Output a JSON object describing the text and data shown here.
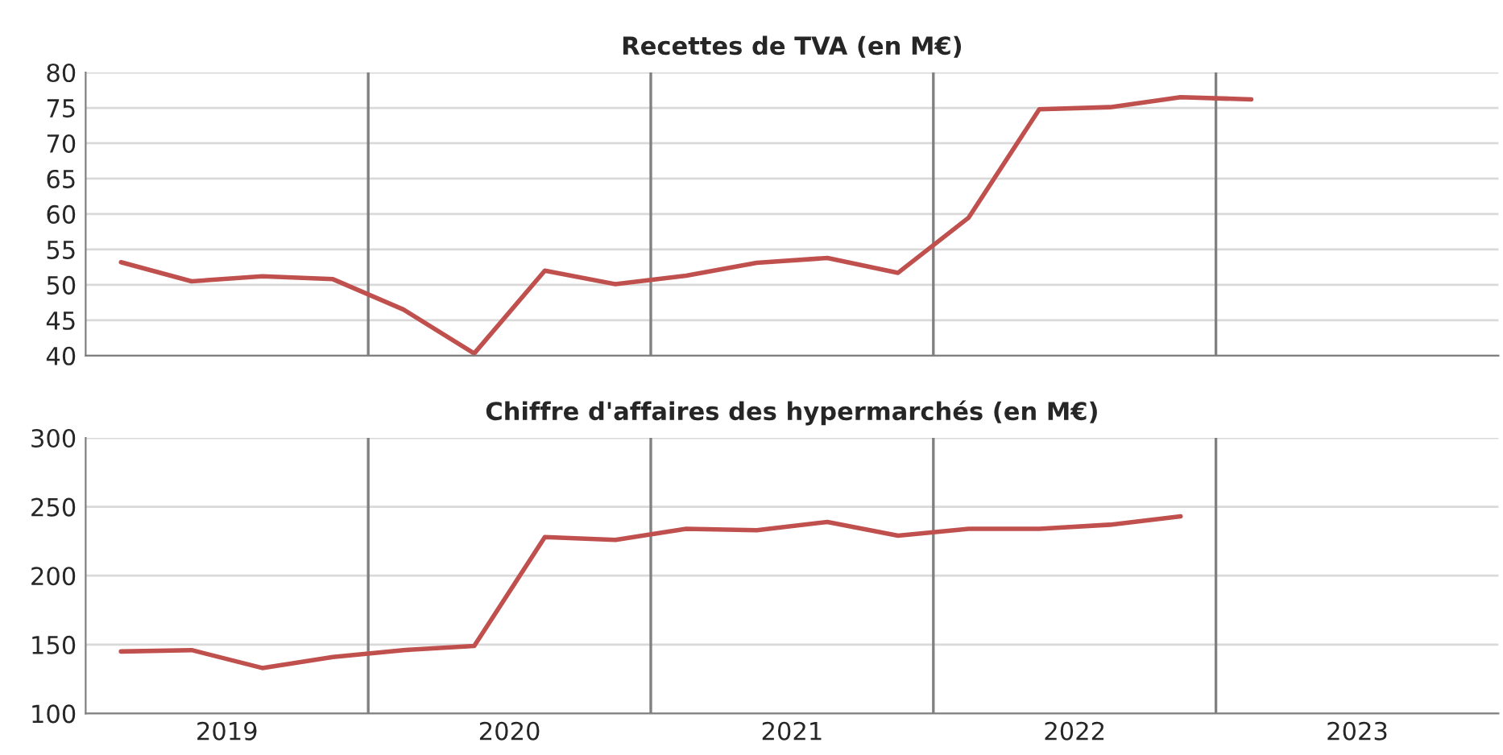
{
  "chart_data": [
    {
      "type": "line",
      "title": "Recettes de TVA (en M€)",
      "x": [
        2019.125,
        2019.375,
        2019.625,
        2019.875,
        2020.125,
        2020.375,
        2020.625,
        2020.875,
        2021.125,
        2021.375,
        2021.625,
        2021.875,
        2022.125,
        2022.375,
        2022.625,
        2022.875,
        2023.125
      ],
      "series": [
        {
          "color": "#c0504d",
          "values": [
            53.2,
            50.5,
            51.2,
            50.8,
            46.5,
            40.3,
            52.0,
            50.1,
            51.3,
            53.1,
            53.8,
            51.7,
            59.5,
            74.8,
            75.1,
            76.5,
            76.2
          ]
        }
      ],
      "xlim": [
        2019,
        2024
      ],
      "ylim": [
        40,
        80
      ],
      "yticks": [
        40,
        45,
        50,
        55,
        60,
        65,
        70,
        75,
        80
      ],
      "tick_labels": "y",
      "grid": "y",
      "marker": "none",
      "line_style": "solid",
      "ref_lines": [
        {
          "axis": "x",
          "value": 2020,
          "color": "#808080"
        },
        {
          "axis": "x",
          "value": 2021,
          "color": "#808080"
        },
        {
          "axis": "x",
          "value": 2022,
          "color": "#808080"
        },
        {
          "axis": "x",
          "value": 2023,
          "color": "#808080"
        }
      ]
    },
    {
      "type": "line",
      "title": "Chiffre d'affaires des hypermarchés (en M€)",
      "x": [
        2019.125,
        2019.375,
        2019.625,
        2019.875,
        2020.125,
        2020.375,
        2020.625,
        2020.875,
        2021.125,
        2021.375,
        2021.625,
        2021.875,
        2022.125,
        2022.375,
        2022.625,
        2022.875
      ],
      "series": [
        {
          "color": "#c0504d",
          "values": [
            145,
            146,
            133,
            141,
            146,
            149,
            228,
            226,
            234,
            233,
            239,
            229,
            234,
            234,
            237,
            243
          ]
        }
      ],
      "xlim": [
        2019,
        2024
      ],
      "xticks": [
        {
          "value": 2019.5,
          "label": "2019"
        },
        {
          "value": 2020.5,
          "label": "2020"
        },
        {
          "value": 2021.5,
          "label": "2021"
        },
        {
          "value": 2022.5,
          "label": "2022"
        },
        {
          "value": 2023.5,
          "label": "2023"
        }
      ],
      "ylim": [
        100,
        300
      ],
      "yticks": [
        100,
        150,
        200,
        250,
        300
      ],
      "grid": "y",
      "marker": "none",
      "line_style": "solid",
      "ref_lines": [
        {
          "axis": "x",
          "value": 2020,
          "color": "#808080"
        },
        {
          "axis": "x",
          "value": 2021,
          "color": "#808080"
        },
        {
          "axis": "x",
          "value": 2022,
          "color": "#808080"
        },
        {
          "axis": "x",
          "value": 2023,
          "color": "#808080"
        }
      ]
    }
  ]
}
